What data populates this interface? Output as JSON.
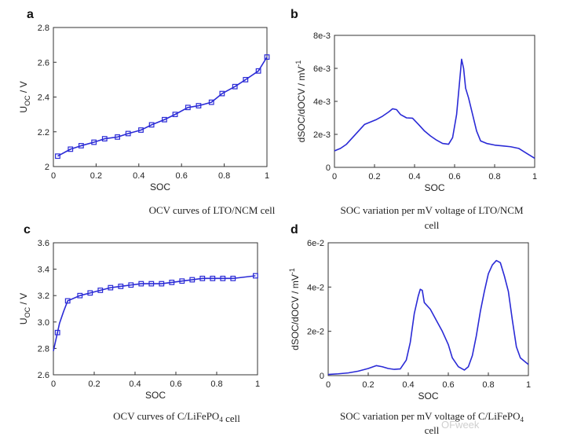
{
  "watermark": "OFweek",
  "chart_data": [
    {
      "panel": "a",
      "type": "line",
      "xlabel": "SOC",
      "ylabel_base": "U",
      "ylabel_sub": "OC",
      "ylabel_tail": " / V",
      "xlim": [
        0,
        1
      ],
      "ylim": [
        2.0,
        2.8
      ],
      "xticks": [
        0,
        0.2,
        0.4,
        0.6,
        0.8,
        1
      ],
      "xtick_labels": [
        "0",
        "0.2",
        "0.4",
        "0.6",
        "0.8",
        "1"
      ],
      "yticks": [
        2.0,
        2.2,
        2.4,
        2.6,
        2.8
      ],
      "ytick_labels": [
        "2",
        "2.2",
        "2.4",
        "2.6",
        "2.8"
      ],
      "markers": true,
      "color": "#2a2ad6",
      "caption_lines": [
        [
          "OCV  curves  of  LTO/NCM  cell"
        ]
      ],
      "series": [
        {
          "x": [
            0.02,
            0.08,
            0.13,
            0.19,
            0.24,
            0.3,
            0.35,
            0.41,
            0.46,
            0.52,
            0.57,
            0.63,
            0.68,
            0.74,
            0.79,
            0.85,
            0.9,
            0.96,
            1.0
          ],
          "y": [
            2.06,
            2.1,
            2.12,
            2.14,
            2.16,
            2.17,
            2.19,
            2.21,
            2.24,
            2.27,
            2.3,
            2.34,
            2.35,
            2.37,
            2.42,
            2.46,
            2.5,
            2.55,
            2.63
          ]
        }
      ]
    },
    {
      "panel": "b",
      "type": "line",
      "xlabel": "SOC",
      "ylabel": "dSOC/dOCV  / mV",
      "ylabel_sup": "-1",
      "xlim": [
        0,
        1
      ],
      "ylim": [
        0,
        0.008
      ],
      "xticks": [
        0,
        0.2,
        0.4,
        0.6,
        0.8,
        1
      ],
      "xtick_labels": [
        "0",
        "0.2",
        "0.4",
        "0.6",
        "0.8",
        "1"
      ],
      "yticks": [
        0,
        0.002,
        0.004,
        0.006,
        0.008
      ],
      "ytick_labels": [
        "0",
        "2e-3",
        "4e-3",
        "6e-3",
        "8e-3"
      ],
      "markers": false,
      "color": "#2a2ad6",
      "caption_lines": [
        [
          "SOC  variation  per  mV  voltage  of  LTO/NCM"
        ],
        [
          "cell"
        ]
      ],
      "series": [
        {
          "x": [
            0,
            0.03,
            0.06,
            0.09,
            0.12,
            0.15,
            0.18,
            0.21,
            0.24,
            0.27,
            0.29,
            0.31,
            0.33,
            0.36,
            0.39,
            0.42,
            0.45,
            0.48,
            0.51,
            0.54,
            0.57,
            0.59,
            0.61,
            0.625,
            0.635,
            0.645,
            0.655,
            0.67,
            0.69,
            0.71,
            0.73,
            0.76,
            0.8,
            0.84,
            0.88,
            0.92,
            0.96,
            1.0
          ],
          "y": [
            0.001,
            0.00115,
            0.0014,
            0.0018,
            0.0022,
            0.0026,
            0.00275,
            0.0029,
            0.0031,
            0.00335,
            0.00355,
            0.0035,
            0.0032,
            0.003,
            0.00298,
            0.0026,
            0.0022,
            0.0019,
            0.00165,
            0.00145,
            0.0014,
            0.0018,
            0.0032,
            0.0052,
            0.00655,
            0.006,
            0.0048,
            0.0042,
            0.0032,
            0.0022,
            0.0016,
            0.00145,
            0.00135,
            0.0013,
            0.00125,
            0.00115,
            0.00085,
            0.00055
          ]
        }
      ]
    },
    {
      "panel": "c",
      "type": "line",
      "xlabel": "SOC",
      "ylabel_base": "U",
      "ylabel_sub": "OC",
      "ylabel_tail": " / V",
      "xlim": [
        0,
        1
      ],
      "ylim": [
        2.6,
        3.6
      ],
      "xticks": [
        0,
        0.2,
        0.4,
        0.6,
        0.8,
        1
      ],
      "xtick_labels": [
        "0",
        "0.2",
        "0.4",
        "0.6",
        "0.8",
        "1"
      ],
      "yticks": [
        2.6,
        2.8,
        3.0,
        3.2,
        3.4,
        3.6
      ],
      "ytick_labels": [
        "2.6",
        "2.8",
        "3.0",
        "3.2",
        "3.4",
        "3.6"
      ],
      "markers": true,
      "color": "#2a2ad6",
      "caption_lines": [
        [
          "OCV  curves  of  C/LiFePO",
          [
            "4",
            "sub"
          ],
          "  cell"
        ]
      ],
      "series": [
        {
          "x": [
            0.0,
            0.01,
            0.02,
            0.03,
            0.05,
            0.07,
            0.13,
            0.18,
            0.23,
            0.28,
            0.33,
            0.38,
            0.43,
            0.48,
            0.53,
            0.58,
            0.63,
            0.68,
            0.73,
            0.78,
            0.83,
            0.88,
            0.99
          ],
          "y": [
            2.78,
            2.85,
            2.92,
            2.99,
            3.08,
            3.16,
            3.2,
            3.22,
            3.24,
            3.26,
            3.27,
            3.28,
            3.29,
            3.29,
            3.29,
            3.3,
            3.31,
            3.32,
            3.33,
            3.33,
            3.33,
            3.33,
            3.35
          ]
        }
      ],
      "marker_x": [
        0.02,
        0.07,
        0.13,
        0.18,
        0.23,
        0.28,
        0.33,
        0.38,
        0.43,
        0.48,
        0.53,
        0.58,
        0.63,
        0.68,
        0.73,
        0.78,
        0.83,
        0.88,
        0.99
      ]
    },
    {
      "panel": "d",
      "type": "line",
      "xlabel": "SOC",
      "ylabel": "dSOC/dOCV  / mV",
      "ylabel_sup": "-1",
      "xlim": [
        0,
        1
      ],
      "ylim": [
        0,
        0.06
      ],
      "xticks": [
        0,
        0.2,
        0.4,
        0.6,
        0.8,
        1
      ],
      "xtick_labels": [
        "0",
        "0.2",
        "0.4",
        "0.6",
        "0.8",
        "1"
      ],
      "yticks": [
        0,
        0.02,
        0.04,
        0.06
      ],
      "ytick_labels": [
        "0",
        "2e-2",
        "4e-2",
        "6e-2"
      ],
      "markers": false,
      "color": "#2a2ad6",
      "caption_lines": [
        [
          "SOC  variation  per  mV  voltage  of  C/LiFePO",
          [
            "4",
            "sub"
          ]
        ],
        [
          "cell"
        ]
      ],
      "series": [
        {
          "x": [
            0,
            0.05,
            0.1,
            0.15,
            0.2,
            0.24,
            0.27,
            0.3,
            0.33,
            0.36,
            0.39,
            0.41,
            0.43,
            0.45,
            0.46,
            0.47,
            0.48,
            0.51,
            0.54,
            0.57,
            0.6,
            0.62,
            0.65,
            0.68,
            0.7,
            0.72,
            0.74,
            0.76,
            0.78,
            0.8,
            0.82,
            0.84,
            0.86,
            0.88,
            0.9,
            0.92,
            0.94,
            0.96,
            1.0
          ],
          "y": [
            0.0005,
            0.0008,
            0.0012,
            0.002,
            0.0032,
            0.0045,
            0.004,
            0.0032,
            0.0028,
            0.003,
            0.007,
            0.015,
            0.028,
            0.036,
            0.039,
            0.0385,
            0.033,
            0.03,
            0.025,
            0.02,
            0.014,
            0.008,
            0.004,
            0.0025,
            0.004,
            0.009,
            0.018,
            0.029,
            0.038,
            0.046,
            0.05,
            0.052,
            0.051,
            0.045,
            0.038,
            0.025,
            0.013,
            0.008,
            0.005
          ]
        }
      ]
    }
  ]
}
